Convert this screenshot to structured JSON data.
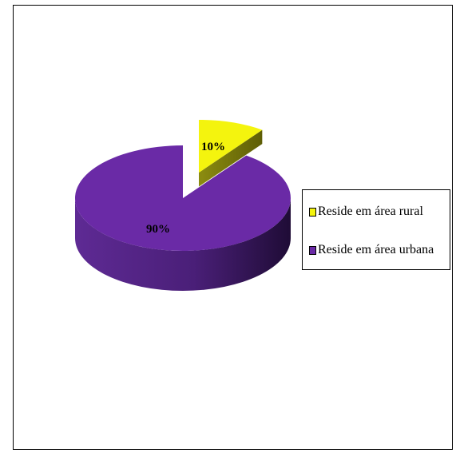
{
  "chart_data": {
    "type": "pie",
    "slices": [
      {
        "label": "Reside em área rural",
        "value": 10,
        "value_label": "10%",
        "color": "#f4f40e"
      },
      {
        "label": "Reside em área urbana",
        "value": 90,
        "value_label": "90%",
        "color": "#6a2aa6"
      }
    ],
    "legend_position": "right",
    "style": "3d-exploded"
  }
}
